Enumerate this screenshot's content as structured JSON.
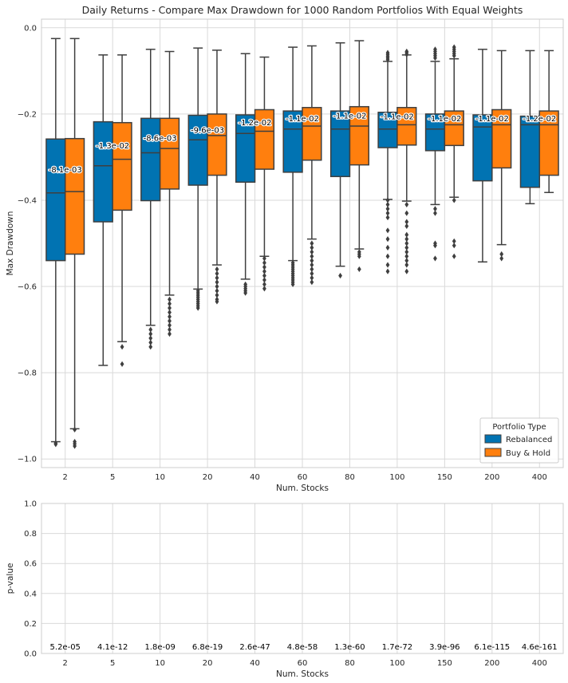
{
  "chart_data": [
    {
      "type": "box",
      "title": "Daily Returns - Compare Max Drawdown for 1000 Random Portfolios With Equal Weights",
      "xlabel": "Num. Stocks",
      "ylabel": "Max Drawdown",
      "categories": [
        "2",
        "5",
        "10",
        "20",
        "40",
        "60",
        "80",
        "100",
        "150",
        "200",
        "400"
      ],
      "ylim": [
        -1.02,
        0.02
      ],
      "yticks": [
        -1.0,
        -0.8,
        -0.6,
        -0.4,
        -0.2,
        0.0
      ],
      "ytick_labels": [
        "−1.0",
        "−0.8",
        "−0.6",
        "−0.4",
        "−0.2",
        "0.0"
      ],
      "grid": true,
      "legend": {
        "title": "Portfolio Type",
        "placement": "lower-right"
      },
      "series": [
        {
          "name": "Rebalanced",
          "color": "#0173b2",
          "boxes": [
            {
              "q1": -0.54,
              "median": -0.383,
              "q3": -0.258,
              "whislo": -0.96,
              "whishi": -0.025,
              "fliers": [
                -0.963,
                -0.966
              ]
            },
            {
              "q1": -0.45,
              "median": -0.32,
              "q3": -0.218,
              "whislo": -0.783,
              "whishi": -0.063,
              "fliers": []
            },
            {
              "q1": -0.401,
              "median": -0.29,
              "q3": -0.21,
              "whislo": -0.69,
              "whishi": -0.05,
              "fliers": [
                -0.7,
                -0.71,
                -0.72,
                -0.73,
                -0.74
              ]
            },
            {
              "q1": -0.365,
              "median": -0.26,
              "q3": -0.203,
              "whislo": -0.606,
              "whishi": -0.047,
              "fliers": [
                -0.61,
                -0.615,
                -0.62,
                -0.625,
                -0.63,
                -0.635,
                -0.64,
                -0.645,
                -0.65
              ]
            },
            {
              "q1": -0.358,
              "median": -0.245,
              "q3": -0.202,
              "whislo": -0.583,
              "whishi": -0.06,
              "fliers": [
                -0.595,
                -0.6,
                -0.605,
                -0.61,
                -0.615
              ]
            },
            {
              "q1": -0.335,
              "median": -0.235,
              "q3": -0.193,
              "whislo": -0.54,
              "whishi": -0.045,
              "fliers": [
                -0.545,
                -0.55,
                -0.555,
                -0.56,
                -0.565,
                -0.57,
                -0.575,
                -0.58,
                -0.585,
                -0.59,
                -0.595
              ]
            },
            {
              "q1": -0.345,
              "median": -0.235,
              "q3": -0.193,
              "whislo": -0.553,
              "whishi": -0.035,
              "fliers": [
                -0.575
              ]
            },
            {
              "q1": -0.278,
              "median": -0.235,
              "q3": -0.196,
              "whislo": -0.398,
              "whishi": -0.078,
              "fliers": [
                -0.058,
                -0.062,
                -0.066,
                -0.07,
                -0.074,
                -0.4,
                -0.41,
                -0.42,
                -0.43,
                -0.44,
                -0.47,
                -0.49,
                -0.51,
                -0.53,
                -0.55,
                -0.565
              ]
            },
            {
              "q1": -0.285,
              "median": -0.235,
              "q3": -0.2,
              "whislo": -0.41,
              "whishi": -0.078,
              "fliers": [
                -0.05,
                -0.055,
                -0.06,
                -0.065,
                -0.07,
                -0.42,
                -0.43,
                -0.5,
                -0.505,
                -0.535
              ]
            },
            {
              "q1": -0.355,
              "median": -0.23,
              "q3": -0.202,
              "whislo": -0.543,
              "whishi": -0.05,
              "fliers": []
            },
            {
              "q1": -0.37,
              "median": -0.225,
              "q3": -0.205,
              "whislo": -0.408,
              "whishi": -0.053,
              "fliers": []
            }
          ]
        },
        {
          "name": "Buy & Hold",
          "color": "#ff7f0e",
          "boxes": [
            {
              "q1": -0.525,
              "median": -0.38,
              "q3": -0.257,
              "whislo": -0.93,
              "whishi": -0.025,
              "fliers": [
                -0.932,
                -0.96,
                -0.965,
                -0.97
              ]
            },
            {
              "q1": -0.423,
              "median": -0.305,
              "q3": -0.22,
              "whislo": -0.728,
              "whishi": -0.063,
              "fliers": [
                -0.74,
                -0.78
              ]
            },
            {
              "q1": -0.374,
              "median": -0.28,
              "q3": -0.21,
              "whislo": -0.62,
              "whishi": -0.055,
              "fliers": [
                -0.63,
                -0.64,
                -0.65,
                -0.66,
                -0.67,
                -0.68,
                -0.69,
                -0.7,
                -0.71
              ]
            },
            {
              "q1": -0.342,
              "median": -0.25,
              "q3": -0.2,
              "whislo": -0.55,
              "whishi": -0.052,
              "fliers": [
                -0.56,
                -0.57,
                -0.58,
                -0.59,
                -0.6,
                -0.61,
                -0.62,
                -0.63,
                -0.635
              ]
            },
            {
              "q1": -0.328,
              "median": -0.24,
              "q3": -0.19,
              "whislo": -0.53,
              "whishi": -0.068,
              "fliers": [
                -0.535,
                -0.545,
                -0.555,
                -0.565,
                -0.575,
                -0.585,
                -0.595,
                -0.605
              ]
            },
            {
              "q1": -0.307,
              "median": -0.228,
              "q3": -0.185,
              "whislo": -0.49,
              "whishi": -0.042,
              "fliers": [
                -0.5,
                -0.51,
                -0.52,
                -0.53,
                -0.54,
                -0.55,
                -0.56,
                -0.57,
                -0.58,
                -0.59
              ]
            },
            {
              "q1": -0.318,
              "median": -0.228,
              "q3": -0.183,
              "whislo": -0.513,
              "whishi": -0.03,
              "fliers": [
                -0.52,
                -0.525,
                -0.53,
                -0.56
              ]
            },
            {
              "q1": -0.272,
              "median": -0.225,
              "q3": -0.185,
              "whislo": -0.402,
              "whishi": -0.063,
              "fliers": [
                -0.055,
                -0.058,
                -0.062,
                -0.41,
                -0.43,
                -0.45,
                -0.46,
                -0.48,
                -0.49,
                -0.5,
                -0.51,
                -0.52,
                -0.53,
                -0.54,
                -0.55,
                -0.565
              ]
            },
            {
              "q1": -0.273,
              "median": -0.225,
              "q3": -0.193,
              "whislo": -0.393,
              "whishi": -0.072,
              "fliers": [
                -0.045,
                -0.05,
                -0.055,
                -0.06,
                -0.065,
                -0.4,
                -0.495,
                -0.505,
                -0.53
              ]
            },
            {
              "q1": -0.325,
              "median": -0.225,
              "q3": -0.19,
              "whislo": -0.503,
              "whishi": -0.053,
              "fliers": [
                -0.525,
                -0.535
              ]
            },
            {
              "q1": -0.342,
              "median": -0.225,
              "q3": -0.193,
              "whislo": -0.382,
              "whishi": -0.053,
              "fliers": []
            }
          ]
        }
      ],
      "annotations": [
        {
          "category": "2",
          "text": "-8.1e-03",
          "y": -0.329
        },
        {
          "category": "5",
          "text": "-1.3e-02",
          "y": -0.273
        },
        {
          "category": "10",
          "text": "-8.6e-03",
          "y": -0.256
        },
        {
          "category": "20",
          "text": "-9.6e-03",
          "y": -0.237
        },
        {
          "category": "40",
          "text": "-1.2e-02",
          "y": -0.22
        },
        {
          "category": "60",
          "text": "-1.1e-02",
          "y": -0.21
        },
        {
          "category": "80",
          "text": "-1.1e-02",
          "y": -0.204
        },
        {
          "category": "100",
          "text": "-1.1e-02",
          "y": -0.206
        },
        {
          "category": "150",
          "text": "-1.1e-02",
          "y": -0.21
        },
        {
          "category": "200",
          "text": "-1.1e-02",
          "y": -0.21
        },
        {
          "category": "400",
          "text": "-1.2e-02",
          "y": -0.21
        }
      ]
    },
    {
      "type": "text-annotations",
      "xlabel": "Num. Stocks",
      "ylabel": "p-value",
      "categories": [
        "2",
        "5",
        "10",
        "20",
        "40",
        "60",
        "80",
        "100",
        "150",
        "200",
        "400"
      ],
      "ylim": [
        0.0,
        1.0
      ],
      "yticks": [
        0.0,
        0.2,
        0.4,
        0.6,
        0.8,
        1.0
      ],
      "ytick_labels": [
        "0.0",
        "0.2",
        "0.4",
        "0.6",
        "0.8",
        "1.0"
      ],
      "grid": true,
      "values": [
        "5.2e-05",
        "4.1e-12",
        "1.8e-09",
        "6.8e-19",
        "2.6e-47",
        "4.8e-58",
        "1.3e-60",
        "1.7e-72",
        "3.9e-96",
        "6.1e-115",
        "4.6e-161"
      ],
      "value_y": 0.045
    }
  ]
}
